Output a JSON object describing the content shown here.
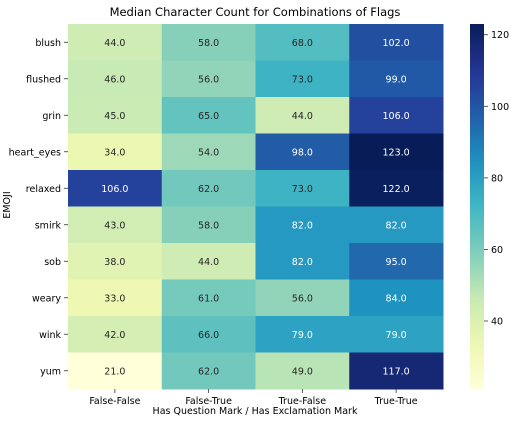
{
  "chart_data": {
    "type": "heatmap",
    "title": "Median Character Count for Combinations of Flags",
    "xlabel": "Has Question Mark / Has Exclamation Mark",
    "ylabel": "EMOJI",
    "x_categories": [
      "False-False",
      "False-True",
      "True-False",
      "True-True"
    ],
    "y_categories": [
      "blush",
      "flushed",
      "grin",
      "heart_eyes",
      "relaxed",
      "smirk",
      "sob",
      "weary",
      "wink",
      "yum"
    ],
    "values": [
      [
        44.0,
        58.0,
        68.0,
        102.0
      ],
      [
        46.0,
        56.0,
        73.0,
        99.0
      ],
      [
        45.0,
        65.0,
        44.0,
        106.0
      ],
      [
        34.0,
        54.0,
        98.0,
        123.0
      ],
      [
        106.0,
        62.0,
        73.0,
        122.0
      ],
      [
        43.0,
        58.0,
        82.0,
        82.0
      ],
      [
        38.0,
        44.0,
        82.0,
        95.0
      ],
      [
        33.0,
        61.0,
        56.0,
        84.0
      ],
      [
        42.0,
        66.0,
        79.0,
        79.0
      ],
      [
        21.0,
        62.0,
        49.0,
        117.0
      ]
    ],
    "value_labels": [
      [
        "44.0",
        "58.0",
        "68.0",
        "102.0"
      ],
      [
        "46.0",
        "56.0",
        "73.0",
        "99.0"
      ],
      [
        "45.0",
        "65.0",
        "44.0",
        "106.0"
      ],
      [
        "34.0",
        "54.0",
        "98.0",
        "123.0"
      ],
      [
        "106.0",
        "62.0",
        "73.0",
        "122.0"
      ],
      [
        "43.0",
        "58.0",
        "82.0",
        "82.0"
      ],
      [
        "38.0",
        "44.0",
        "82.0",
        "95.0"
      ],
      [
        "33.0",
        "61.0",
        "56.0",
        "84.0"
      ],
      [
        "42.0",
        "66.0",
        "79.0",
        "79.0"
      ],
      [
        "21.0",
        "62.0",
        "49.0",
        "117.0"
      ]
    ],
    "colormap": "YlGnBu",
    "vmin": 21,
    "vmax": 123,
    "colorbar_ticks": [
      40,
      60,
      80,
      100,
      120
    ],
    "colorbar_tick_labels": [
      "40",
      "60",
      "80",
      "100",
      "120"
    ]
  }
}
